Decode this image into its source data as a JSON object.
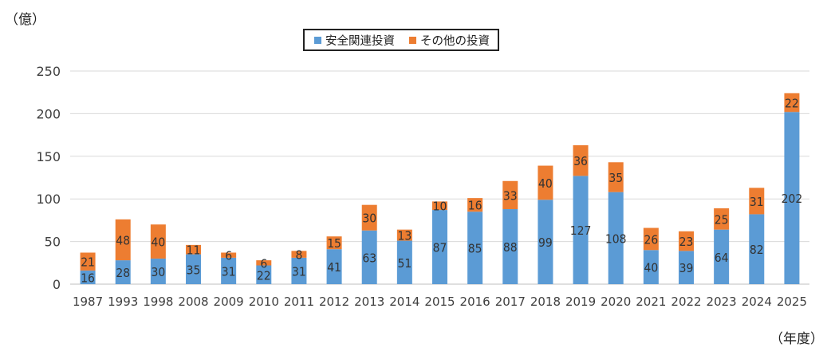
{
  "chart_data": {
    "type": "bar",
    "stacked": true,
    "y_unit_label": "（億）",
    "x_unit_label": "（年度）",
    "categories": [
      "1987",
      "1993",
      "1998",
      "2008",
      "2009",
      "2010",
      "2011",
      "2012",
      "2013",
      "2014",
      "2015",
      "2016",
      "2017",
      "2018",
      "2019",
      "2020",
      "2021",
      "2022",
      "2023",
      "2024",
      "2025"
    ],
    "series": [
      {
        "name": "安全関連投資",
        "color": "#5b9bd5",
        "values": [
          16,
          28,
          30,
          35,
          31,
          22,
          31,
          41,
          63,
          51,
          87,
          85,
          88,
          99,
          127,
          108,
          40,
          39,
          64,
          82,
          202
        ]
      },
      {
        "name": "その他の投資",
        "color": "#ed7d31",
        "values": [
          21,
          48,
          40,
          11,
          6,
          6,
          8,
          15,
          30,
          13,
          10,
          16,
          33,
          40,
          36,
          35,
          26,
          23,
          25,
          31,
          22
        ]
      }
    ],
    "ylim": [
      0,
      250
    ],
    "yticks": [
      0,
      50,
      100,
      150,
      200,
      250
    ],
    "grid": true,
    "legend_position": "top"
  }
}
